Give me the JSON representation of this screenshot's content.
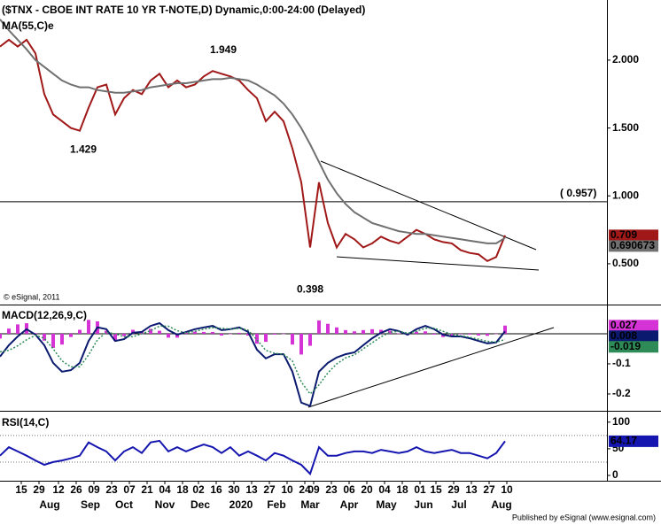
{
  "footer": "Published by eSignal (www.esignal.com)",
  "chart_data": [
    {
      "type": "line",
      "title": "($TNX - CBOE INT RATE 10 YR T-NOTE,D) Dynamic,0:00-24:00 (Delayed)",
      "note": "© eSignal, 2011",
      "x": [
        0,
        5,
        10,
        15,
        20,
        25,
        30,
        35,
        40,
        45,
        50,
        55,
        60,
        65,
        70,
        75,
        80,
        85,
        90,
        95,
        100,
        105,
        110,
        115,
        120,
        125,
        130,
        135,
        140,
        145,
        150,
        155,
        160,
        165,
        170,
        175,
        180,
        185,
        190,
        195,
        200,
        205,
        210,
        215,
        220,
        225,
        230,
        235,
        240,
        245,
        250,
        255,
        260,
        265,
        270,
        275,
        280,
        285
      ],
      "xlim": [
        0,
        342.5
      ],
      "ylim": [
        0.206,
        2.443
      ],
      "yticks": [
        {
          "value": 2,
          "label": "2.000"
        },
        {
          "value": 1.5,
          "label": "1.500"
        },
        {
          "value": 1,
          "label": "1.000"
        },
        {
          "value": 0.5,
          "label": "0.500"
        }
      ],
      "hline": {
        "value": 0.957,
        "label": "( 0.957)"
      },
      "annotations": [
        {
          "text": "1.949",
          "x": 126,
          "y": 1.949,
          "position": "above"
        },
        {
          "text": "1.429",
          "x": 47,
          "y": 1.429,
          "position": "below"
        },
        {
          "text": "0.398",
          "x": 175,
          "y": 0.398,
          "position": "below"
        }
      ],
      "series": [
        {
          "color": "#a01818",
          "style": "line",
          "values": [
            2.1,
            2.15,
            2.1,
            2.15,
            2.05,
            1.75,
            1.6,
            1.55,
            1.5,
            1.48,
            1.65,
            1.8,
            1.82,
            1.6,
            1.72,
            1.78,
            1.75,
            1.85,
            1.9,
            1.8,
            1.85,
            1.8,
            1.82,
            1.88,
            1.92,
            1.9,
            1.88,
            1.85,
            1.78,
            1.72,
            1.55,
            1.62,
            1.55,
            1.35,
            1.1,
            0.62,
            1.1,
            0.8,
            0.62,
            0.72,
            0.68,
            0.62,
            0.65,
            0.7,
            0.67,
            0.65,
            0.7,
            0.75,
            0.72,
            0.68,
            0.66,
            0.65,
            0.6,
            0.58,
            0.57,
            0.52,
            0.55,
            0.709
          ]
        },
        {
          "name": "MA(55,C)e",
          "color": "#707070",
          "style": "line",
          "values": [
            2.3,
            2.22,
            2.15,
            2.08,
            2.0,
            1.95,
            1.9,
            1.85,
            1.82,
            1.8,
            1.8,
            1.78,
            1.77,
            1.76,
            1.76,
            1.77,
            1.78,
            1.8,
            1.81,
            1.82,
            1.83,
            1.83,
            1.84,
            1.85,
            1.86,
            1.86,
            1.87,
            1.86,
            1.85,
            1.82,
            1.78,
            1.74,
            1.68,
            1.6,
            1.5,
            1.38,
            1.25,
            1.12,
            1.02,
            0.94,
            0.88,
            0.84,
            0.8,
            0.78,
            0.76,
            0.74,
            0.73,
            0.72,
            0.72,
            0.71,
            0.7,
            0.69,
            0.68,
            0.67,
            0.66,
            0.65,
            0.65,
            0.690673
          ]
        }
      ]
    },
    {
      "type": "line",
      "title": "MACD(12,26,9,C)",
      "x": [
        0,
        5,
        10,
        15,
        20,
        25,
        30,
        35,
        40,
        45,
        50,
        55,
        60,
        65,
        70,
        75,
        80,
        85,
        90,
        95,
        100,
        105,
        110,
        115,
        120,
        125,
        130,
        135,
        140,
        145,
        150,
        155,
        160,
        165,
        170,
        175,
        180,
        185,
        190,
        195,
        200,
        205,
        210,
        215,
        220,
        225,
        230,
        235,
        240,
        245,
        250,
        255,
        260,
        265,
        270,
        275,
        280,
        285
      ],
      "xlim": [
        0,
        342.5
      ],
      "ylim": [
        -0.253,
        0.091
      ],
      "yticks": [
        -0.1,
        -0.2
      ],
      "zero_line": true,
      "series": [
        {
          "color": "#d633d6",
          "style": "histogram",
          "values": [
            -0.016,
            0.017,
            0.031,
            0.035,
            0.002,
            -0.023,
            -0.047,
            -0.036,
            -0.011,
            0.013,
            0.046,
            0.041,
            0.01,
            -0.024,
            -0.008,
            0.013,
            0.006,
            0.016,
            0.01,
            -0.013,
            -0.013,
            0.003,
            0.007,
            0.006,
            0.006,
            -0.006,
            0.0,
            0.003,
            -0.006,
            -0.033,
            -0.027,
            -0.003,
            0.0,
            -0.036,
            -0.069,
            -0.04,
            0.044,
            0.033,
            0.021,
            0.012,
            0.008,
            0.012,
            0.015,
            0.013,
            0.01,
            0.001,
            -0.005,
            0.007,
            0.008,
            -0.003,
            -0.011,
            -0.007,
            -0.002,
            -0.003,
            -0.006,
            -0.007,
            -0.001,
            0.027
          ]
        },
        {
          "color": "#0a1a6e",
          "style": "line",
          "values": [
            -0.076,
            -0.038,
            -0.009,
            0.015,
            -0.003,
            -0.038,
            -0.097,
            -0.126,
            -0.121,
            -0.097,
            -0.024,
            0.021,
            0.015,
            -0.024,
            -0.018,
            0.003,
            0.006,
            0.026,
            0.035,
            0.012,
            -0.003,
            0.006,
            0.015,
            0.021,
            0.026,
            0.012,
            0.015,
            0.021,
            0.006,
            -0.053,
            -0.082,
            -0.068,
            -0.068,
            -0.126,
            -0.229,
            -0.24,
            -0.126,
            -0.097,
            -0.079,
            -0.068,
            -0.062,
            -0.038,
            -0.015,
            0.003,
            0.015,
            0.009,
            -0.003,
            0.015,
            0.026,
            0.015,
            -0.003,
            -0.009,
            -0.009,
            -0.015,
            -0.024,
            -0.032,
            -0.029,
            0.008
          ]
        },
        {
          "color": "#2e8b57",
          "style": "dotted",
          "values": [
            -0.06,
            -0.055,
            -0.04,
            -0.02,
            -0.005,
            -0.015,
            -0.05,
            -0.09,
            -0.11,
            -0.11,
            -0.07,
            -0.02,
            0.005,
            0.0,
            -0.01,
            -0.01,
            0.0,
            0.01,
            0.025,
            0.025,
            0.01,
            0.003,
            0.008,
            0.015,
            0.02,
            0.018,
            0.015,
            0.018,
            0.012,
            -0.02,
            -0.055,
            -0.065,
            -0.068,
            -0.09,
            -0.16,
            -0.2,
            -0.17,
            -0.13,
            -0.1,
            -0.08,
            -0.07,
            -0.05,
            -0.03,
            -0.01,
            0.005,
            0.008,
            0.002,
            0.008,
            0.018,
            0.018,
            0.008,
            -0.002,
            -0.007,
            -0.012,
            -0.018,
            -0.025,
            -0.028,
            -0.019
          ]
        }
      ]
    },
    {
      "type": "line",
      "title": "RSI(14,C)",
      "x": [
        0,
        5,
        10,
        15,
        20,
        25,
        30,
        35,
        40,
        45,
        50,
        55,
        60,
        65,
        70,
        75,
        80,
        85,
        90,
        95,
        100,
        105,
        110,
        115,
        120,
        125,
        130,
        135,
        140,
        145,
        150,
        155,
        160,
        165,
        170,
        175,
        180,
        185,
        190,
        195,
        200,
        205,
        210,
        215,
        220,
        225,
        230,
        235,
        240,
        245,
        250,
        255,
        260,
        265,
        270,
        275,
        280,
        285
      ],
      "xlim": [
        0,
        342.5
      ],
      "ylim": [
        -10,
        118
      ],
      "yticks": [
        100,
        50,
        0
      ],
      "levels": [
        75,
        25
      ],
      "xticks": [
        {
          "value": 12,
          "label": "15"
        },
        {
          "value": 22,
          "label": "29"
        },
        {
          "value": 33,
          "label": "12"
        },
        {
          "value": 43,
          "label": "26"
        },
        {
          "value": 53,
          "label": "09"
        },
        {
          "value": 63,
          "label": "23"
        },
        {
          "value": 73,
          "label": "07"
        },
        {
          "value": 83,
          "label": "21"
        },
        {
          "value": 93,
          "label": "04"
        },
        {
          "value": 103,
          "label": "18"
        },
        {
          "value": 112,
          "label": "02"
        },
        {
          "value": 122,
          "label": "16"
        },
        {
          "value": 132,
          "label": "30"
        },
        {
          "value": 142,
          "label": "13"
        },
        {
          "value": 152,
          "label": "27"
        },
        {
          "value": 162,
          "label": "10"
        },
        {
          "value": 172,
          "label": "24"
        },
        {
          "value": 177,
          "label": "09"
        },
        {
          "value": 187,
          "label": "23"
        },
        {
          "value": 197,
          "label": "06"
        },
        {
          "value": 207,
          "label": "20"
        },
        {
          "value": 217,
          "label": "04"
        },
        {
          "value": 227,
          "label": "18"
        },
        {
          "value": 237,
          "label": "01"
        },
        {
          "value": 246,
          "label": "15"
        },
        {
          "value": 256,
          "label": "29"
        },
        {
          "value": 266,
          "label": "13"
        },
        {
          "value": 276,
          "label": "27"
        },
        {
          "value": 286,
          "label": "10"
        }
      ],
      "period_labels": [
        {
          "value": 28,
          "label": "Aug"
        },
        {
          "value": 51,
          "label": "Sep"
        },
        {
          "value": 70,
          "label": "Oct"
        },
        {
          "value": 93,
          "label": "Nov"
        },
        {
          "value": 113,
          "label": "Dec"
        },
        {
          "value": 136,
          "label": "2020"
        },
        {
          "value": 156,
          "label": "Feb"
        },
        {
          "value": 175,
          "label": "Mar"
        },
        {
          "value": 197,
          "label": "Apr"
        },
        {
          "value": 218,
          "label": "May"
        },
        {
          "value": 239,
          "label": "Jun"
        },
        {
          "value": 259,
          "label": "Jul"
        },
        {
          "value": 283,
          "label": "Aug"
        }
      ],
      "series": [
        {
          "color": "#1515b0",
          "style": "line",
          "values": [
            37,
            53,
            45,
            37,
            28,
            20,
            25,
            28,
            32,
            37,
            62,
            53,
            45,
            28,
            45,
            53,
            42,
            62,
            65,
            45,
            53,
            45,
            52,
            58,
            53,
            42,
            53,
            37,
            45,
            37,
            28,
            42,
            37,
            28,
            20,
            3,
            53,
            37,
            37,
            42,
            45,
            45,
            42,
            48,
            45,
            42,
            45,
            53,
            45,
            42,
            45,
            48,
            42,
            42,
            37,
            32,
            42,
            64.17
          ]
        }
      ]
    }
  ]
}
